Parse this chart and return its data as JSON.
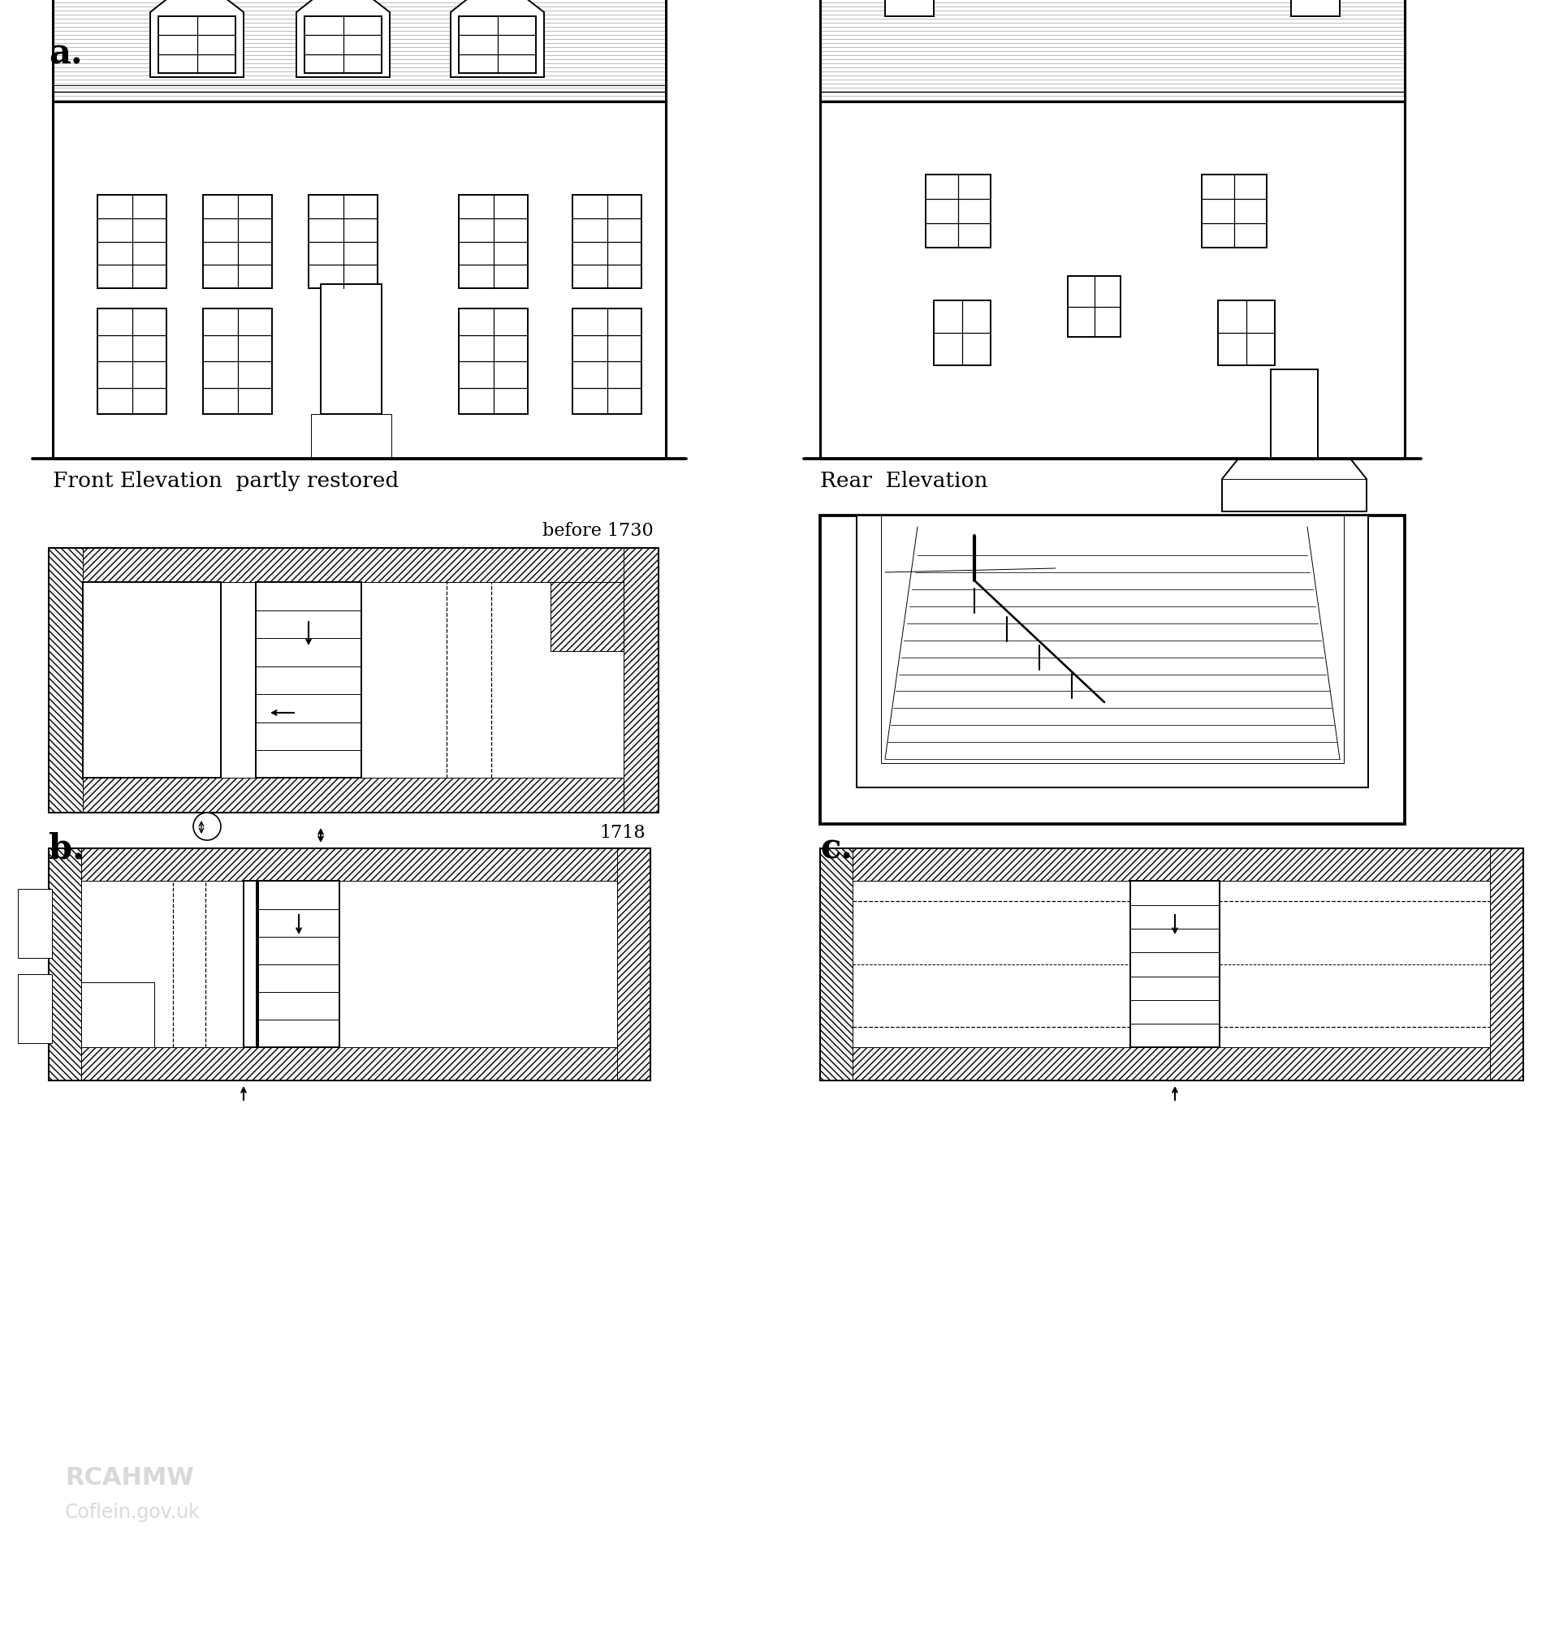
{
  "bg_color": "#ffffff",
  "ink_color": "#1a1a1a",
  "label_a": "a.",
  "label_b": "b.",
  "label_c": "c.",
  "label_front": "Front Elevation  partly restored",
  "label_rear": "Rear  Elevation",
  "label_before": "before 1730",
  "label_1718": "1718",
  "fig_width": 19.2,
  "fig_height": 20.35
}
